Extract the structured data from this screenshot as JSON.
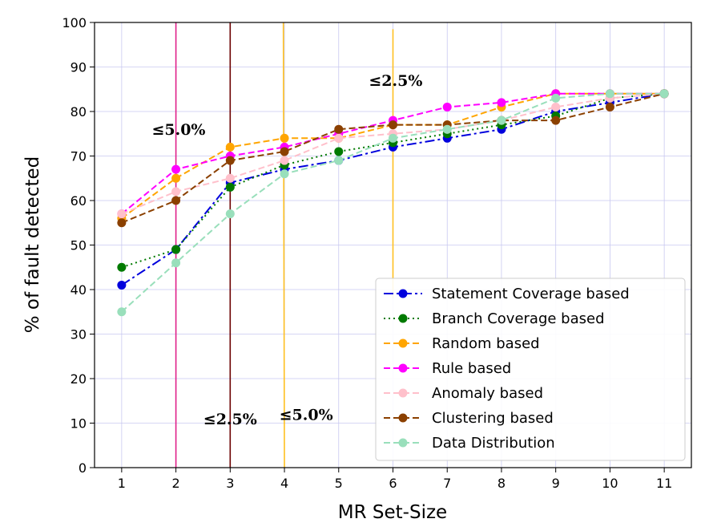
{
  "chart_data": {
    "type": "line",
    "title": "",
    "xlabel": "MR Set-Size",
    "ylabel": "% of fault detected",
    "x": [
      1,
      2,
      3,
      4,
      5,
      6,
      7,
      8,
      9,
      10,
      11
    ],
    "xlim": [
      0.5,
      11.5
    ],
    "ylim": [
      0,
      100
    ],
    "yticks": [
      0,
      10,
      20,
      30,
      40,
      50,
      60,
      70,
      80,
      90,
      100
    ],
    "grid": true,
    "legend_position": "lower-right",
    "series": [
      {
        "name": "Statement Coverage based",
        "color": "#0000dd",
        "dash": "dashdot",
        "values": [
          41,
          49,
          64,
          67,
          69,
          72,
          74,
          76,
          80,
          82,
          84
        ]
      },
      {
        "name": "Branch Coverage based",
        "color": "#007a00",
        "dash": "dotted",
        "values": [
          45,
          49,
          63,
          68,
          71,
          73,
          75,
          77,
          79,
          83,
          84
        ]
      },
      {
        "name": "Random based",
        "color": "#ffa500",
        "dash": "dashed",
        "values": [
          56,
          65,
          72,
          74,
          74,
          77,
          77,
          81,
          84,
          84,
          84
        ]
      },
      {
        "name": "Rule based",
        "color": "#ff00ff",
        "dash": "dashed",
        "values": [
          57,
          67,
          70,
          72,
          75,
          78,
          81,
          82,
          84,
          84,
          84
        ]
      },
      {
        "name": "Anomaly based",
        "color": "#ffc0cb",
        "dash": "dashed",
        "values": [
          57,
          62,
          65,
          69,
          74,
          75,
          76,
          78,
          81,
          83,
          84
        ]
      },
      {
        "name": "Clustering based",
        "color": "#8b4000",
        "dash": "dashed",
        "values": [
          55,
          60,
          69,
          71,
          76,
          77,
          77,
          78,
          78,
          81,
          84
        ]
      },
      {
        "name": "Data Distribution",
        "color": "#99dfbb",
        "dash": "dashed",
        "values": [
          35,
          46,
          57,
          66,
          69,
          74,
          76,
          78,
          83,
          84,
          84
        ]
      }
    ],
    "vertical_lines": [
      {
        "x": 2,
        "color": "#e0208a",
        "y_top": 100,
        "y_bottom": 0
      },
      {
        "x": 3,
        "color": "#6b0000",
        "y_top": 100,
        "y_bottom": 0
      },
      {
        "x": 4,
        "x_top": 3.98,
        "color": "#ffc020",
        "y_top": 100,
        "y_bottom": 0
      },
      {
        "x": 6,
        "color": "#ffc020",
        "y_top": 98.5,
        "y_bottom": 38
      }
    ],
    "annotations": [
      {
        "text": "≤5.0%",
        "x": 2.05,
        "y": 76
      },
      {
        "text": "≤2.5%",
        "x": 6.05,
        "y": 87
      },
      {
        "text": "≤2.5%",
        "x": 3.0,
        "y": 11
      },
      {
        "text": "≤5.0%",
        "x": 4.4,
        "y": 12
      }
    ]
  }
}
